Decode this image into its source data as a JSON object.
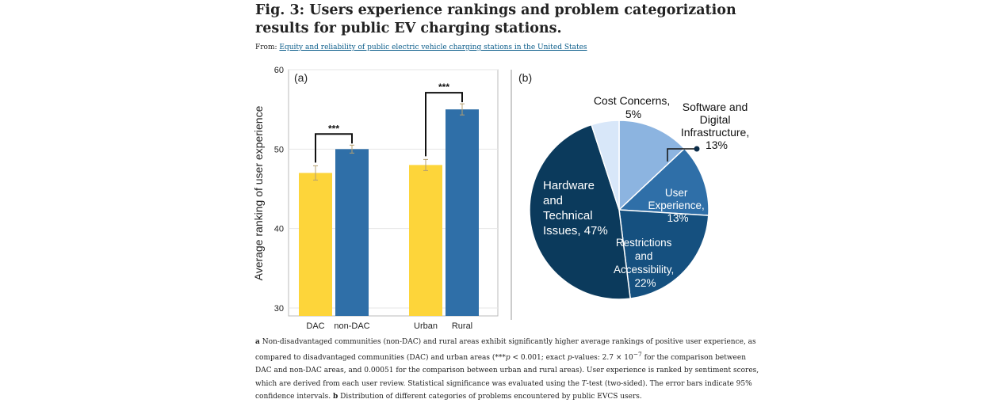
{
  "figure": {
    "title": "Fig. 3: Users experience rankings and problem categorization results for public EV charging stations.",
    "from_label": "From:",
    "from_link": "Equity and reliability of public electric vehicle charging stations in the United States"
  },
  "caption": {
    "a_marker": "a",
    "part1": " Non-disadvantaged communities (non-DAC) and rural areas exhibit significantly higher average rankings of positive user experience, as compared to disadvantaged communities (DAC) and urban areas (***",
    "p_symbol": "p",
    "part2": " < 0.001; exact ",
    "p_symbol2": "p",
    "part3": "-values: 2.7 × 10",
    "exponent": "−7",
    "part4": " for the comparison between DAC and non-DAC areas, and 0.00051 for the comparison between urban and rural areas). User experience is ranked by sentiment scores, which are derived from each user review. Statistical significance was evaluated using the ",
    "t_symbol": "T",
    "part5": "-test (two-sided). The error bars indicate 95% confidence intervals. ",
    "b_marker": "b",
    "part6": " Distribution of different categories of problems encountered by public EVCS users."
  },
  "colors": {
    "yellow": "#fdd53a",
    "blue": "#2f6fa8",
    "pie_dark": "#0b3a5c",
    "pie_mid": "#15507f",
    "pie_blue": "#2f6fa8",
    "pie_light": "#8cb4e0",
    "pie_pale": "#d8e7f9"
  },
  "chart_data": [
    {
      "type": "bar",
      "panel_label": "(a)",
      "ylabel": "Average ranking of user experience",
      "ylim": [
        29,
        60
      ],
      "yticks": [
        30,
        40,
        50,
        60
      ],
      "categories": [
        "DAC",
        "non-DAC",
        "Urban",
        "Rural"
      ],
      "values": [
        47.0,
        50.0,
        48.0,
        55.0
      ],
      "errors": [
        0.9,
        0.5,
        0.7,
        0.7
      ],
      "bar_colors": [
        "yellow",
        "blue",
        "yellow",
        "blue"
      ],
      "significance": [
        {
          "pair": [
            0,
            1
          ],
          "label": "***"
        },
        {
          "pair": [
            2,
            3
          ],
          "label": "***"
        }
      ],
      "grid": true
    },
    {
      "type": "pie",
      "panel_label": "(b)",
      "slices": [
        {
          "label": "Software and Digital Infrastructure,",
          "pct_label": "13%",
          "value": 13,
          "color": "pie_light"
        },
        {
          "label": "User Experience,",
          "pct_label": "13%",
          "value": 13,
          "color": "pie_blue"
        },
        {
          "label": "Restrictions and Accessibility,",
          "pct_label": "22%",
          "value": 22,
          "color": "pie_mid"
        },
        {
          "label": "Hardware and Technical Issues,",
          "pct_label": "47%",
          "value": 47,
          "color": "pie_dark"
        },
        {
          "label": "Cost Concerns,",
          "pct_label": "5%",
          "value": 5,
          "color": "pie_pale"
        }
      ]
    }
  ]
}
